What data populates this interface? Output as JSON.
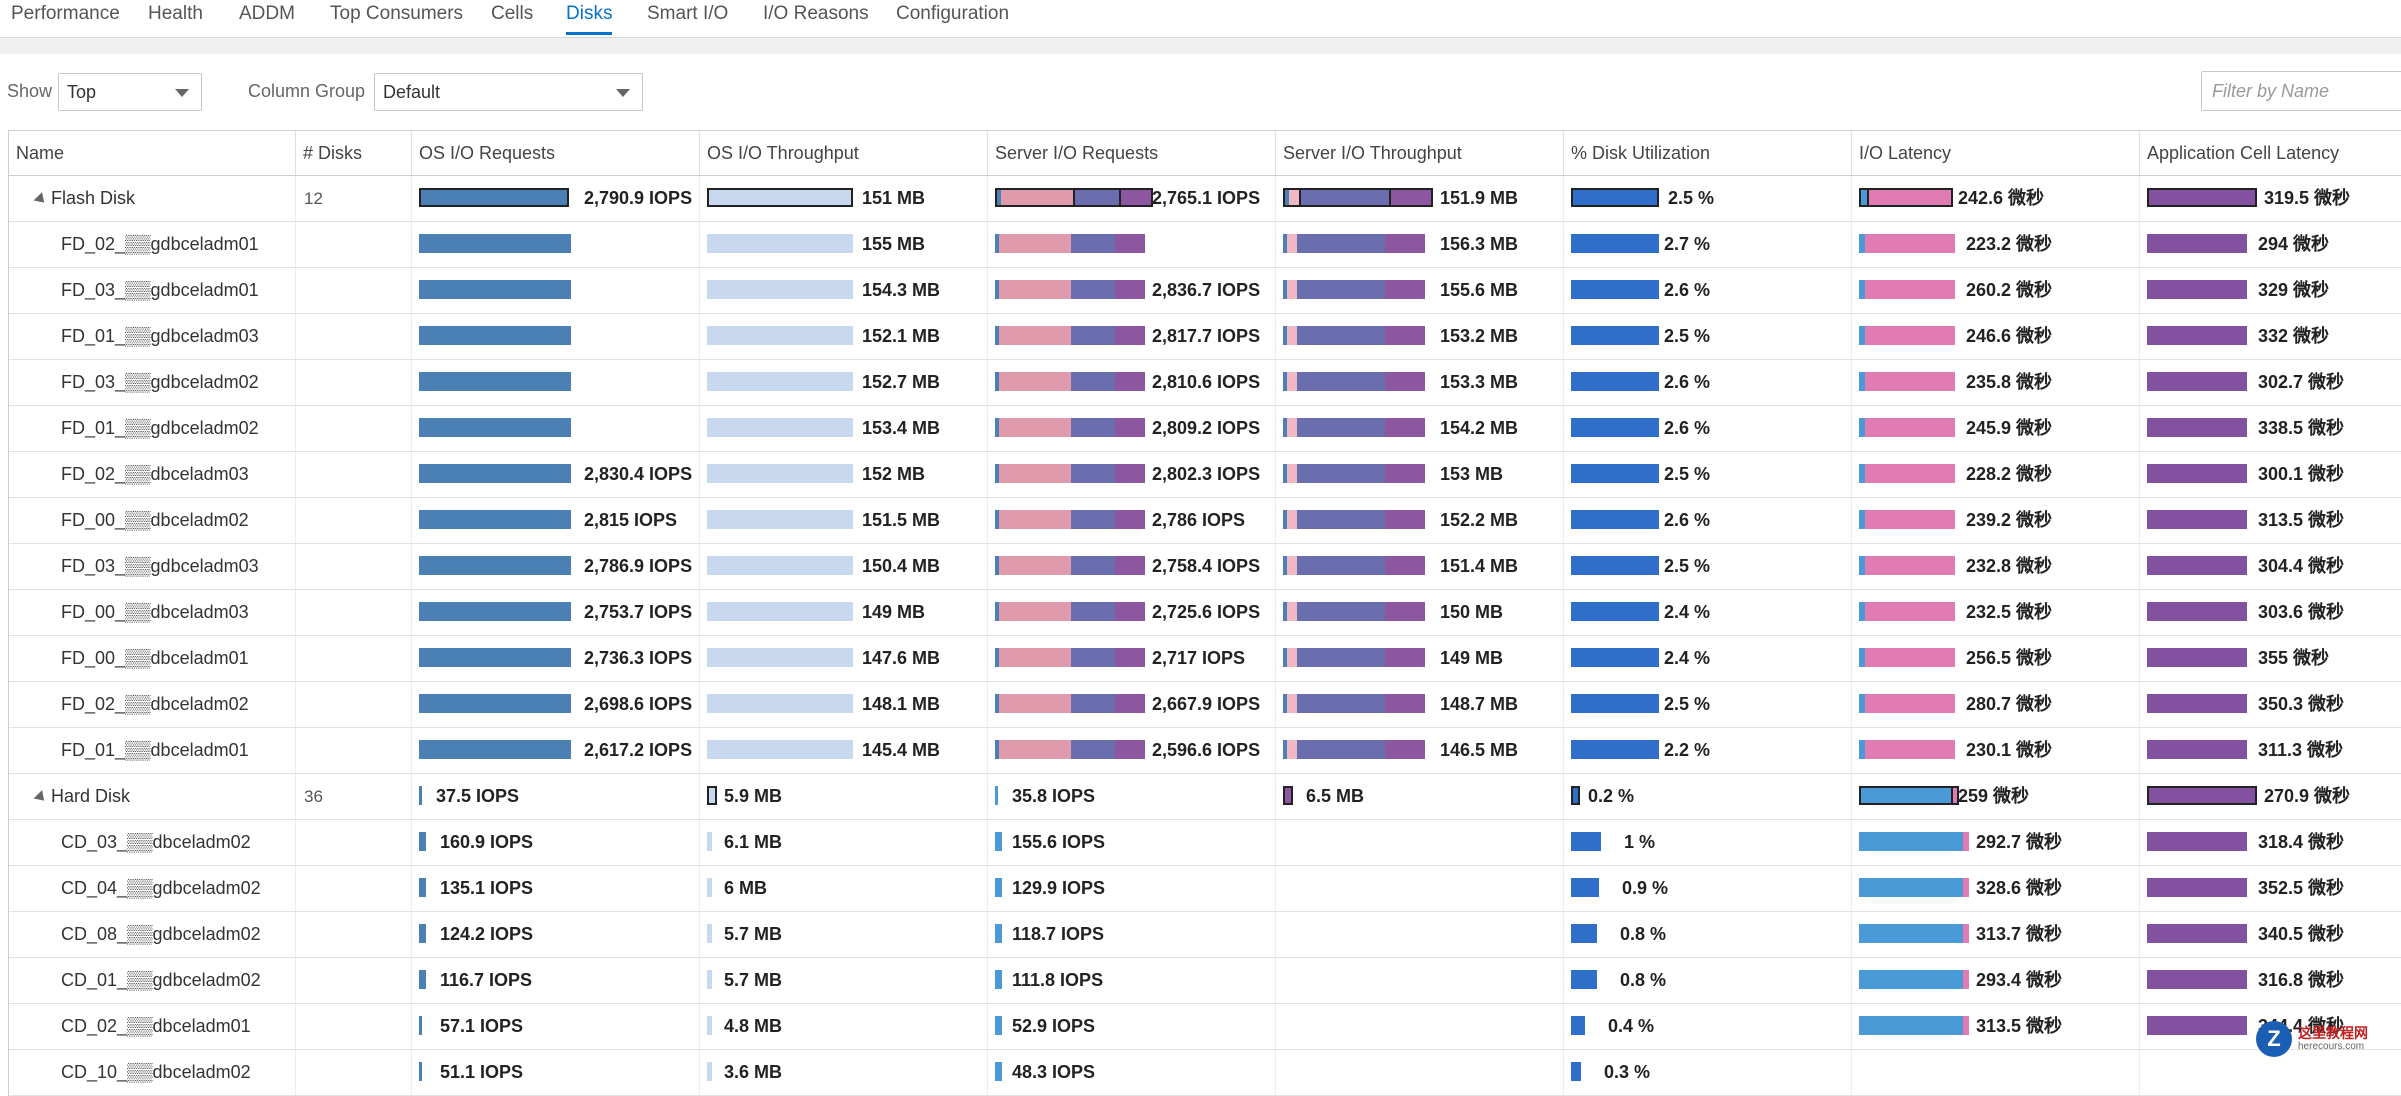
{
  "tabs": [
    {
      "label": "Performance",
      "active": false
    },
    {
      "label": "Health",
      "active": false
    },
    {
      "label": "ADDM",
      "active": false
    },
    {
      "label": "Top Consumers",
      "active": false
    },
    {
      "label": "Cells",
      "active": false
    },
    {
      "label": "Disks",
      "active": true
    },
    {
      "label": "Smart I/O",
      "active": false
    },
    {
      "label": "I/O Reasons",
      "active": false
    },
    {
      "label": "Configuration",
      "active": false
    }
  ],
  "toolbar": {
    "show_label": "Show",
    "show_value": "Top",
    "column_group_label": "Column Group",
    "column_group_value": "Default",
    "filter_placeholder": "Filter by Name"
  },
  "columns": [
    "Name",
    "# Disks",
    "OS I/O Requests",
    "OS I/O Throughput",
    "Server I/O Requests",
    "Server I/O Throughput",
    "% Disk Utilization",
    "I/O Latency",
    "Application Cell Latency"
  ],
  "colors": {
    "os_req": "#4a80b4",
    "os_tp": "#c8d9ef",
    "srv_a": "#df9aab",
    "srv_b": "#6a6dae",
    "srv_c": "#8c56a0",
    "srv_tp_a": "#f0b8c4",
    "srv_tp_b": "#6a6dae",
    "srv_tp_c": "#8c56a0",
    "util": "#2f6ec9",
    "lat_a": "#4a9ad8",
    "lat_b": "#e07bb4",
    "app": "#8252a0"
  },
  "rows": [
    {
      "name": "Flash Disk",
      "group": true,
      "disks": "12",
      "os_req": "2,790.9 IOPS",
      "os_tp": "151 MB",
      "srv_req": "2,765.1 IOPS",
      "srv_tp": "151.9 MB",
      "util": "2.5 %",
      "lat": "242.6 微秒",
      "app": "319.5 微秒"
    },
    {
      "name": "FD_02_▒▒gdbceladm01",
      "group": false,
      "disks": "",
      "os_req": "",
      "os_tp": "155 MB",
      "srv_req": "",
      "srv_tp": "156.3 MB",
      "util": "2.7 %",
      "lat": "223.2 微秒",
      "app": "294 微秒"
    },
    {
      "name": "FD_03_▒▒gdbceladm01",
      "group": false,
      "disks": "",
      "os_req": "",
      "os_tp": "154.3 MB",
      "srv_req": "2,836.7 IOPS",
      "srv_tp": "155.6 MB",
      "util": "2.6 %",
      "lat": "260.2 微秒",
      "app": "329 微秒"
    },
    {
      "name": "FD_01_▒▒gdbceladm03",
      "group": false,
      "disks": "",
      "os_req": "",
      "os_tp": "152.1 MB",
      "srv_req": "2,817.7 IOPS",
      "srv_tp": "153.2 MB",
      "util": "2.5 %",
      "lat": "246.6 微秒",
      "app": "332 微秒"
    },
    {
      "name": "FD_03_▒▒gdbceladm02",
      "group": false,
      "disks": "",
      "os_req": "",
      "os_tp": "152.7 MB",
      "srv_req": "2,810.6 IOPS",
      "srv_tp": "153.3 MB",
      "util": "2.6 %",
      "lat": "235.8 微秒",
      "app": "302.7 微秒"
    },
    {
      "name": "FD_01_▒▒gdbceladm02",
      "group": false,
      "disks": "",
      "os_req": "",
      "os_tp": "153.4 MB",
      "srv_req": "2,809.2 IOPS",
      "srv_tp": "154.2 MB",
      "util": "2.6 %",
      "lat": "245.9 微秒",
      "app": "338.5 微秒"
    },
    {
      "name": "FD_02_▒▒dbceladm03",
      "group": false,
      "disks": "",
      "os_req": "2,830.4 IOPS",
      "os_tp": "152 MB",
      "srv_req": "2,802.3 IOPS",
      "srv_tp": "153 MB",
      "util": "2.5 %",
      "lat": "228.2 微秒",
      "app": "300.1 微秒"
    },
    {
      "name": "FD_00_▒▒dbceladm02",
      "group": false,
      "disks": "",
      "os_req": "2,815 IOPS",
      "os_tp": "151.5 MB",
      "srv_req": "2,786 IOPS",
      "srv_tp": "152.2 MB",
      "util": "2.6 %",
      "lat": "239.2 微秒",
      "app": "313.5 微秒"
    },
    {
      "name": "FD_03_▒▒gdbceladm03",
      "group": false,
      "disks": "",
      "os_req": "2,786.9 IOPS",
      "os_tp": "150.4 MB",
      "srv_req": "2,758.4 IOPS",
      "srv_tp": "151.4 MB",
      "util": "2.5 %",
      "lat": "232.8 微秒",
      "app": "304.4 微秒"
    },
    {
      "name": "FD_00_▒▒dbceladm03",
      "group": false,
      "disks": "",
      "os_req": "2,753.7 IOPS",
      "os_tp": "149 MB",
      "srv_req": "2,725.6 IOPS",
      "srv_tp": "150 MB",
      "util": "2.4 %",
      "lat": "232.5 微秒",
      "app": "303.6 微秒"
    },
    {
      "name": "FD_00_▒▒dbceladm01",
      "group": false,
      "disks": "",
      "os_req": "2,736.3 IOPS",
      "os_tp": "147.6 MB",
      "srv_req": "2,717 IOPS",
      "srv_tp": "149 MB",
      "util": "2.4 %",
      "lat": "256.5 微秒",
      "app": "355 微秒"
    },
    {
      "name": "FD_02_▒▒dbceladm02",
      "group": false,
      "disks": "",
      "os_req": "2,698.6 IOPS",
      "os_tp": "148.1 MB",
      "srv_req": "2,667.9 IOPS",
      "srv_tp": "148.7 MB",
      "util": "2.5 %",
      "lat": "280.7 微秒",
      "app": "350.3 微秒"
    },
    {
      "name": "FD_01_▒▒dbceladm01",
      "group": false,
      "disks": "",
      "os_req": "2,617.2 IOPS",
      "os_tp": "145.4 MB",
      "srv_req": "2,596.6 IOPS",
      "srv_tp": "146.5 MB",
      "util": "2.2 %",
      "lat": "230.1 微秒",
      "app": "311.3 微秒"
    },
    {
      "name": "Hard Disk",
      "group": true,
      "disks": "36",
      "os_req": "37.5 IOPS",
      "os_tp": "5.9 MB",
      "srv_req": "35.8 IOPS",
      "srv_tp": "6.5 MB",
      "util": "0.2 %",
      "lat": "259 微秒",
      "app": "270.9 微秒"
    },
    {
      "name": "CD_03_▒▒dbceladm02",
      "group": false,
      "disks": "",
      "os_req": "160.9 IOPS",
      "os_tp": "6.1 MB",
      "srv_req": "155.6 IOPS",
      "srv_tp": "",
      "util": "1 %",
      "lat": "292.7 微秒",
      "app": "318.4 微秒"
    },
    {
      "name": "CD_04_▒▒gdbceladm02",
      "group": false,
      "disks": "",
      "os_req": "135.1 IOPS",
      "os_tp": "6 MB",
      "srv_req": "129.9 IOPS",
      "srv_tp": "",
      "util": "0.9 %",
      "lat": "328.6 微秒",
      "app": "352.5 微秒"
    },
    {
      "name": "CD_08_▒▒gdbceladm02",
      "group": false,
      "disks": "",
      "os_req": "124.2 IOPS",
      "os_tp": "5.7 MB",
      "srv_req": "118.7 IOPS",
      "srv_tp": "",
      "util": "0.8 %",
      "lat": "313.7 微秒",
      "app": "340.5 微秒"
    },
    {
      "name": "CD_01_▒▒gdbceladm02",
      "group": false,
      "disks": "",
      "os_req": "116.7 IOPS",
      "os_tp": "5.7 MB",
      "srv_req": "111.8 IOPS",
      "srv_tp": "",
      "util": "0.8 %",
      "lat": "293.4 微秒",
      "app": "316.8 微秒"
    },
    {
      "name": "CD_02_▒▒dbceladm01",
      "group": false,
      "disks": "",
      "os_req": "57.1 IOPS",
      "os_tp": "4.8 MB",
      "srv_req": "52.9 IOPS",
      "srv_tp": "",
      "util": "0.4 %",
      "lat": "313.5 微秒",
      "app": "344.4 微秒"
    },
    {
      "name": "CD_10_▒▒dbceladm02",
      "group": false,
      "disks": "",
      "os_req": "51.1 IOPS",
      "os_tp": "3.6 MB",
      "srv_req": "48.3 IOPS",
      "srv_tp": "",
      "util": "0.3 %",
      "lat": "",
      "app": ""
    }
  ],
  "watermark": {
    "title": "这里教程网",
    "sub": "herecours.com"
  }
}
